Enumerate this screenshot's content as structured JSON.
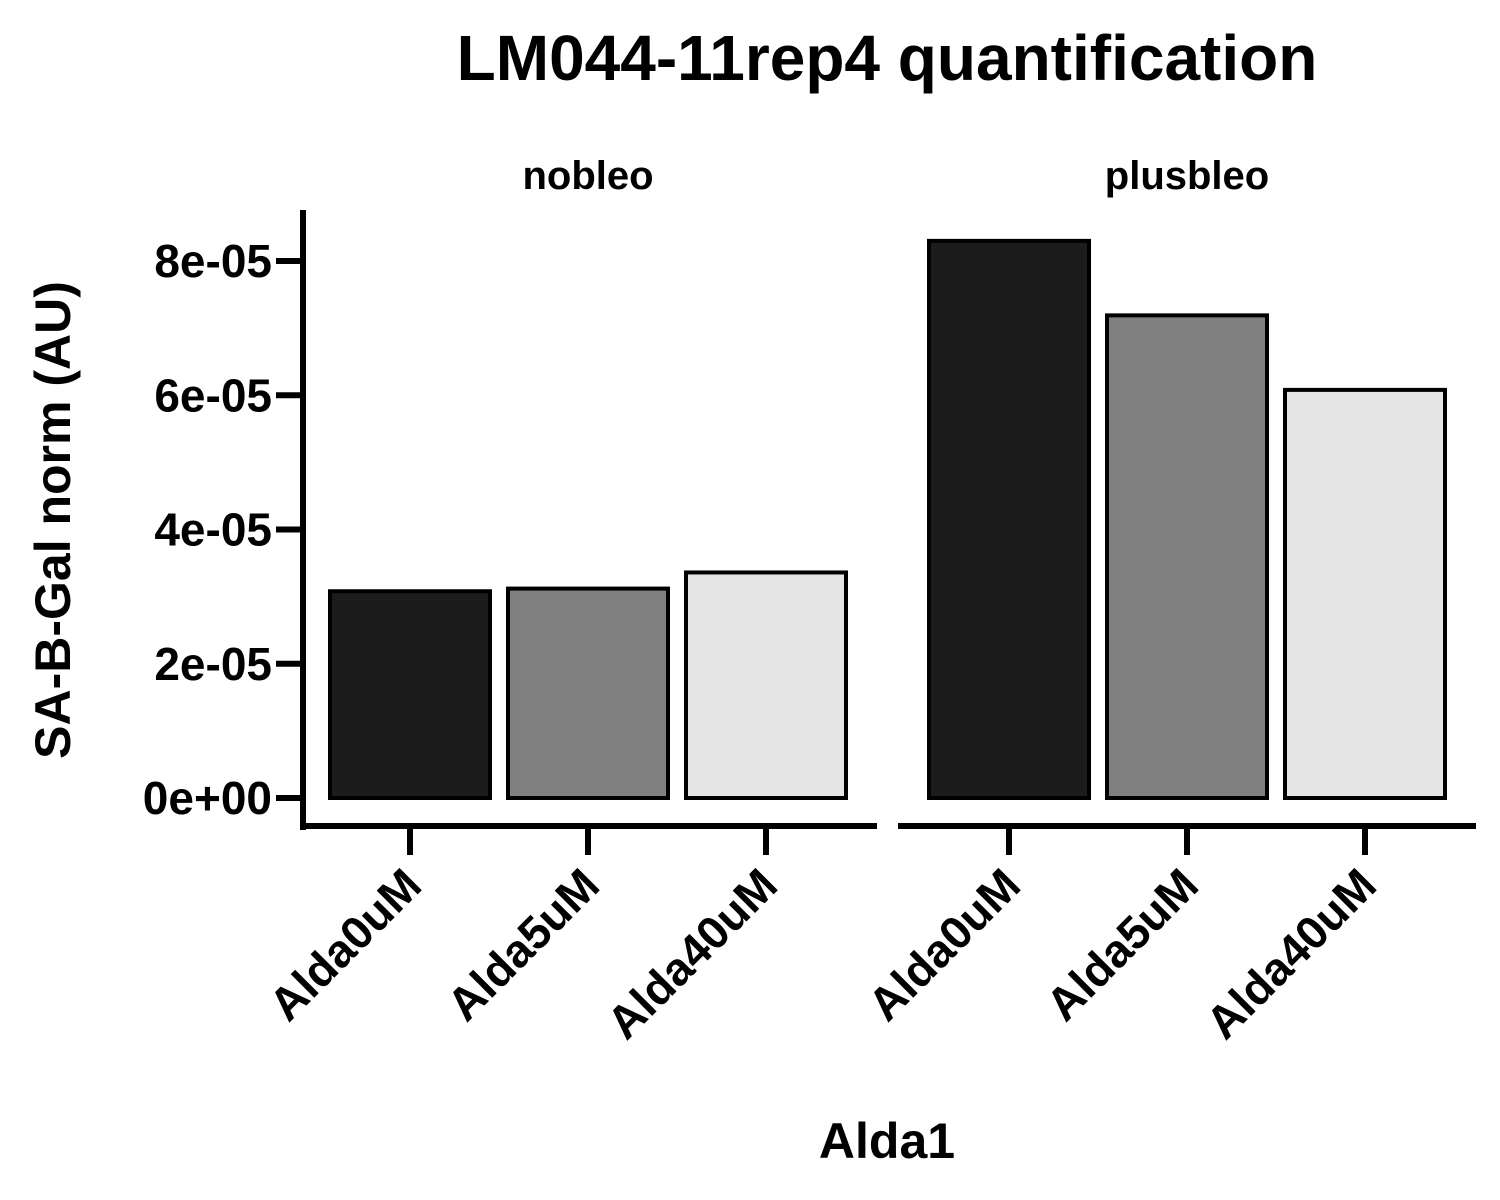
{
  "chart_data": {
    "type": "bar",
    "title": "LM044-11rep4 quantification",
    "xlabel": "Alda1",
    "ylabel": "SA-B-Gal norm (AU)",
    "ylim": [
      0,
      8e-05
    ],
    "yticks": [
      0,
      2e-05,
      4e-05,
      6e-05,
      8e-05
    ],
    "ytick_labels": [
      "0e+00",
      "2e-05",
      "4e-05",
      "6e-05",
      "8e-05"
    ],
    "categories": [
      "Alda0uM",
      "Alda5uM",
      "Alda40uM"
    ],
    "colors": [
      "#1c1c1c",
      "#808080",
      "#e5e5e5"
    ],
    "legend": "none",
    "grid": false,
    "panels": [
      {
        "label": "nobleo",
        "values": [
          3.08e-05,
          3.12e-05,
          3.36e-05
        ]
      },
      {
        "label": "plusbleo",
        "values": [
          8.3e-05,
          7.19e-05,
          6.08e-05
        ]
      }
    ]
  }
}
